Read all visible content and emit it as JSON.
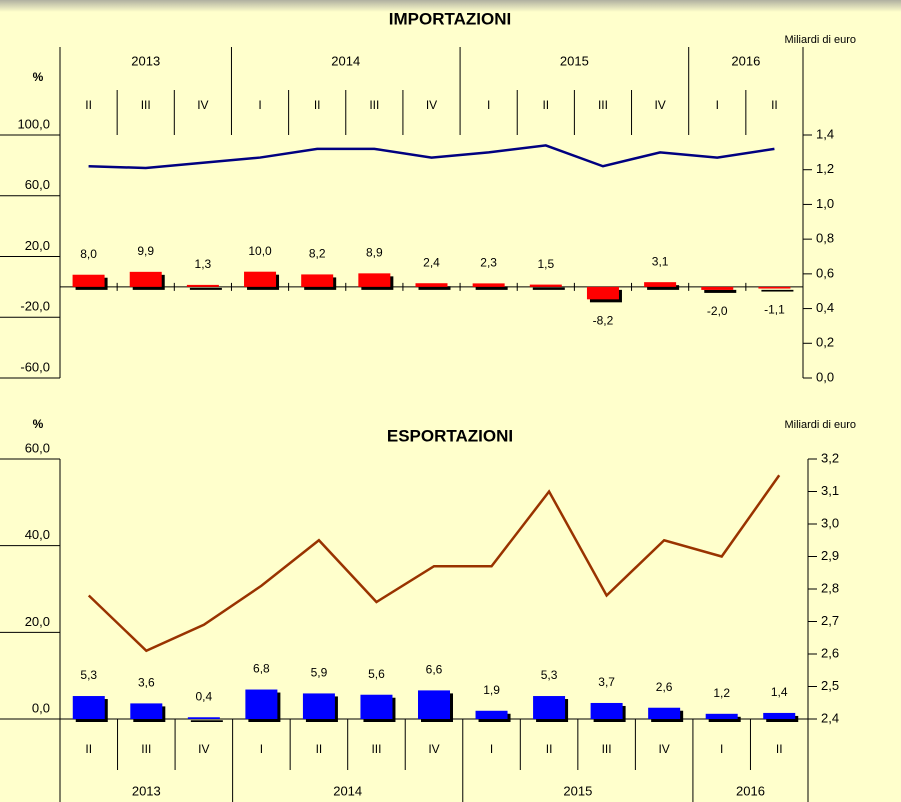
{
  "chart_data": [
    {
      "type": "bar",
      "title": "IMPORTAZIONI",
      "y_label": "%",
      "y2_label": "Miliardi di euro",
      "categories": [
        "II",
        "III",
        "IV",
        "I",
        "II",
        "III",
        "IV",
        "I",
        "II",
        "III",
        "IV",
        "I",
        "II"
      ],
      "x_groups": [
        "2013",
        null,
        null,
        "2014",
        null,
        null,
        null,
        "2015",
        null,
        null,
        null,
        "2016",
        null
      ],
      "ylim": [
        -60,
        100
      ],
      "yticks": [
        {
          "value": -60,
          "label": "-60,0"
        },
        {
          "value": -20,
          "label": "-20,0"
        },
        {
          "value": 20,
          "label": "20,0"
        },
        {
          "value": 60,
          "label": "60,0"
        },
        {
          "value": 100,
          "label": "100,0"
        }
      ],
      "y2lim": [
        0,
        1.4
      ],
      "y2ticks": [
        {
          "value": 0,
          "label": "0,0"
        },
        {
          "value": 0.2,
          "label": "0,2"
        },
        {
          "value": 0.4,
          "label": "0,4"
        },
        {
          "value": 0.6,
          "label": "0,6"
        },
        {
          "value": 0.8,
          "label": "0,8"
        },
        {
          "value": 1.0,
          "label": "1,0"
        },
        {
          "value": 1.2,
          "label": "1,2"
        },
        {
          "value": 1.4,
          "label": "1,4"
        }
      ],
      "bars": {
        "color": "#ff0000",
        "values": [
          8.0,
          9.9,
          1.3,
          10.0,
          8.2,
          8.9,
          2.4,
          2.3,
          1.5,
          -8.2,
          3.1,
          -2.0,
          -1.1
        ],
        "value_labels": [
          "8,0",
          "9,9",
          "1,3",
          "10,0",
          "8,2",
          "8,9",
          "2,4",
          "2,3",
          "1,5",
          "-8,2",
          "3,1",
          "-2,0",
          "-1,1"
        ]
      },
      "line": {
        "color": "#000080",
        "axis": "y2",
        "values": [
          1.22,
          1.21,
          1.24,
          1.27,
          1.32,
          1.32,
          1.27,
          1.3,
          1.34,
          1.22,
          1.3,
          1.27,
          1.32
        ]
      }
    },
    {
      "type": "bar",
      "title": "ESPORTAZIONI",
      "y_label": "%",
      "y2_label": "Miliardi di euro",
      "categories": [
        "II",
        "III",
        "IV",
        "I",
        "II",
        "III",
        "IV",
        "I",
        "II",
        "III",
        "IV",
        "I",
        "II"
      ],
      "x_groups": [
        "2013",
        null,
        null,
        "2014",
        null,
        null,
        null,
        "2015",
        null,
        null,
        null,
        "2016",
        null
      ],
      "ylim": [
        0,
        60
      ],
      "yticks": [
        {
          "value": 0,
          "label": "0,0"
        },
        {
          "value": 20,
          "label": "20,0"
        },
        {
          "value": 40,
          "label": "40,0"
        },
        {
          "value": 60,
          "label": "60,0"
        }
      ],
      "y2lim": [
        2.4,
        3.2
      ],
      "y2ticks": [
        {
          "value": 2.4,
          "label": "2,4"
        },
        {
          "value": 2.5,
          "label": "2,5"
        },
        {
          "value": 2.6,
          "label": "2,6"
        },
        {
          "value": 2.7,
          "label": "2,7"
        },
        {
          "value": 2.8,
          "label": "2,8"
        },
        {
          "value": 2.9,
          "label": "2,9"
        },
        {
          "value": 3.0,
          "label": "3,0"
        },
        {
          "value": 3.1,
          "label": "3,1"
        },
        {
          "value": 3.2,
          "label": "3,2"
        }
      ],
      "bars": {
        "color": "#0000ff",
        "values": [
          5.3,
          3.6,
          0.4,
          6.8,
          5.9,
          5.6,
          6.6,
          1.9,
          5.3,
          3.7,
          2.6,
          1.2,
          1.4
        ],
        "value_labels": [
          "5,3",
          "3,6",
          "0,4",
          "6,8",
          "5,9",
          "5,6",
          "6,6",
          "1,9",
          "5,3",
          "3,7",
          "2,6",
          "1,2",
          "1,4"
        ]
      },
      "line": {
        "color": "#993300",
        "axis": "y2",
        "values": [
          2.78,
          2.61,
          2.69,
          2.81,
          2.95,
          2.76,
          2.87,
          2.87,
          3.1,
          2.78,
          2.95,
          2.9,
          3.15
        ]
      }
    }
  ]
}
